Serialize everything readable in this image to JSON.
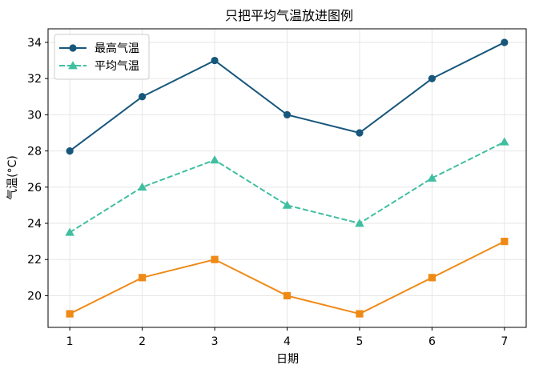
{
  "chart_data": {
    "type": "line",
    "title": "只把平均气温放进图例",
    "xlabel": "日期",
    "ylabel": "气温(°C)",
    "x": [
      1,
      2,
      3,
      4,
      5,
      6,
      7
    ],
    "xlim": [
      0.7,
      7.3
    ],
    "ylim": [
      18.25,
      34.75
    ],
    "xticks": [
      1,
      2,
      3,
      4,
      5,
      6,
      7
    ],
    "yticks": [
      20,
      22,
      24,
      26,
      28,
      30,
      32,
      34
    ],
    "grid": true,
    "legend": {
      "placement": "top-left",
      "entries": [
        "最高气温",
        "平均气温"
      ]
    },
    "series": [
      {
        "name": "最高气温",
        "values": [
          28,
          31,
          33,
          30,
          29,
          32,
          34
        ],
        "color": "#17577b",
        "marker": "circle",
        "linestyle": "solid",
        "in_legend": true
      },
      {
        "name": "平均气温",
        "values": [
          23.5,
          26,
          27.5,
          25,
          24,
          26.5,
          28.5
        ],
        "color": "#3fbfa0",
        "marker": "triangle",
        "linestyle": "dashed",
        "in_legend": true
      },
      {
        "values": [
          19,
          21,
          22,
          20,
          19,
          21,
          23
        ],
        "color": "#ef8a17",
        "marker": "square",
        "linestyle": "solid",
        "in_legend": false
      }
    ]
  },
  "colors": {
    "grid": "#e6e6e6",
    "axis": "#000000",
    "legend_border": "#cccccc"
  }
}
